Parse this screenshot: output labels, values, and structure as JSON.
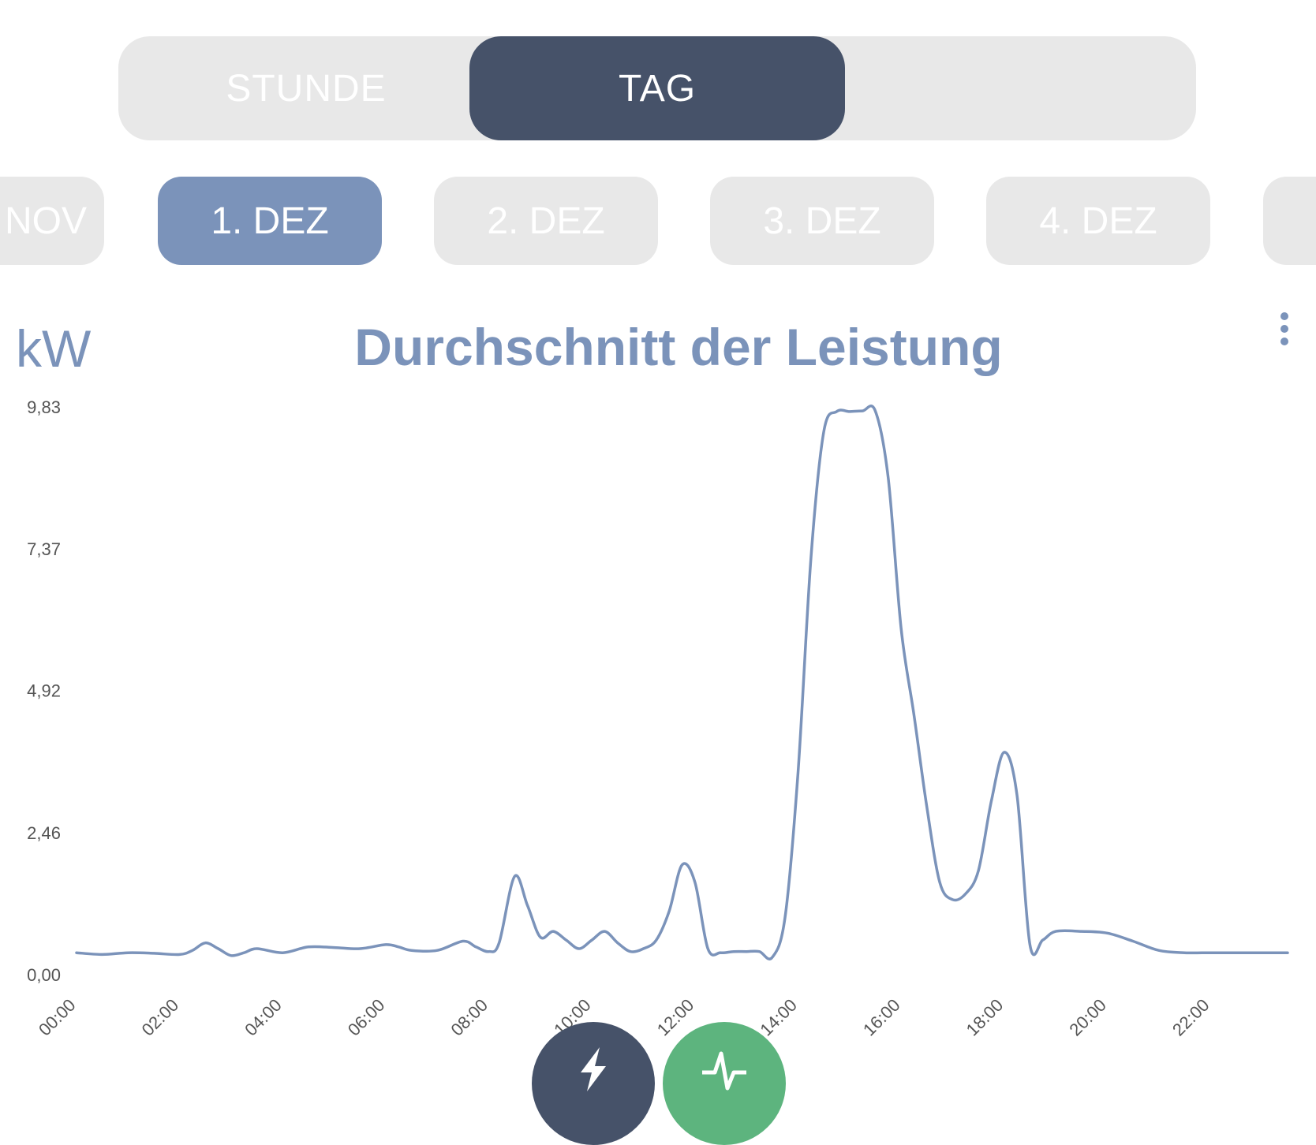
{
  "tabs": [
    {
      "label": "STUNDE",
      "active": false
    },
    {
      "label": "TAG",
      "active": true
    }
  ],
  "dates": [
    {
      "label": "NOV",
      "active": false
    },
    {
      "label": "1. DEZ",
      "active": true
    },
    {
      "label": "2. DEZ",
      "active": false
    },
    {
      "label": "3. DEZ",
      "active": false
    },
    {
      "label": "4. DEZ",
      "active": false
    },
    {
      "label": "",
      "active": false
    }
  ],
  "unit": "kW",
  "colors": {
    "accent": "#7b93ba",
    "dark": "#465269",
    "green": "#5db47e",
    "inactive": "#e8e8e8"
  },
  "actions": [
    {
      "icon": "lightning-icon"
    },
    {
      "icon": "pulse-icon"
    }
  ],
  "chart_data": {
    "type": "line",
    "title": "Durchschnitt der Leistung",
    "ylabel": "kW",
    "xlabel": "",
    "ylim": [
      0,
      9.83
    ],
    "xlim": [
      0,
      23.5
    ],
    "yticks": [
      "0,00",
      "2,46",
      "4,92",
      "7,37",
      "9,83"
    ],
    "yticks_values": [
      0,
      2.46,
      4.92,
      7.37,
      9.83
    ],
    "xticks": [
      "00:00",
      "02:00",
      "04:00",
      "06:00",
      "08:00",
      "10:00",
      "12:00",
      "14:00",
      "16:00",
      "18:00",
      "20:00",
      "22:00"
    ],
    "xticks_values": [
      0,
      2,
      4,
      6,
      8,
      10,
      12,
      14,
      16,
      18,
      20,
      22
    ],
    "grid": false,
    "series": [
      {
        "name": "",
        "x": [
          0,
          0.5,
          1,
          1.5,
          2,
          2.25,
          2.5,
          2.75,
          3,
          3.25,
          3.5,
          4,
          4.5,
          5,
          5.5,
          6,
          6.25,
          6.5,
          7,
          7.5,
          7.75,
          8,
          8.2,
          8.5,
          8.75,
          9,
          9.25,
          9.5,
          9.75,
          10,
          10.25,
          10.5,
          10.75,
          11,
          11.25,
          11.5,
          11.75,
          12,
          12.25,
          12.5,
          12.75,
          13,
          13.25,
          13.5,
          13.75,
          14,
          14.25,
          14.5,
          14.75,
          15,
          15.25,
          15.5,
          15.75,
          16,
          16.25,
          16.5,
          16.75,
          17,
          17.25,
          17.5,
          17.75,
          18,
          18.25,
          18.5,
          18.75,
          19,
          19.5,
          20,
          20.5,
          21,
          21.5,
          22,
          22.5,
          23,
          23.5
        ],
        "values": [
          0.38,
          0.35,
          0.38,
          0.37,
          0.35,
          0.42,
          0.55,
          0.45,
          0.33,
          0.38,
          0.45,
          0.38,
          0.48,
          0.47,
          0.45,
          0.52,
          0.48,
          0.42,
          0.42,
          0.58,
          0.48,
          0.4,
          0.55,
          1.7,
          1.2,
          0.65,
          0.75,
          0.6,
          0.45,
          0.6,
          0.75,
          0.55,
          0.4,
          0.45,
          0.6,
          1.1,
          1.9,
          1.6,
          0.45,
          0.38,
          0.4,
          0.4,
          0.4,
          0.3,
          1.0,
          3.5,
          7.2,
          9.4,
          9.75,
          9.75,
          9.76,
          9.76,
          8.6,
          6.0,
          4.5,
          2.9,
          1.6,
          1.3,
          1.4,
          1.8,
          3.0,
          3.85,
          3.1,
          0.52,
          0.6,
          0.75,
          0.75,
          0.72,
          0.58,
          0.42,
          0.38,
          0.38,
          0.38,
          0.38,
          0.38
        ]
      }
    ]
  }
}
